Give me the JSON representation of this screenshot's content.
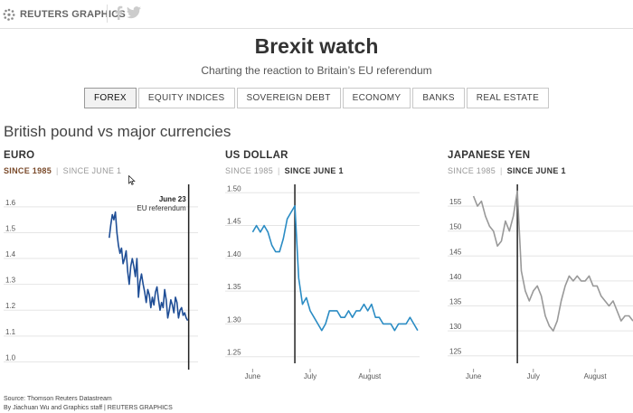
{
  "header": {
    "brand": "REUTERS GRAPHICS",
    "social": [
      {
        "name": "facebook-icon"
      },
      {
        "name": "twitter-icon"
      }
    ]
  },
  "page": {
    "title": "Brexit watch",
    "subtitle": "Charting the reaction to Britain’s EU referendum"
  },
  "tabs": [
    {
      "label": "FOREX",
      "active": true
    },
    {
      "label": "EQUITY INDICES",
      "active": false
    },
    {
      "label": "SOVEREIGN DEBT",
      "active": false
    },
    {
      "label": "ECONOMY",
      "active": false
    },
    {
      "label": "BANKS",
      "active": false
    },
    {
      "label": "REAL ESTATE",
      "active": false
    }
  ],
  "section": {
    "title": "British pound vs major currencies"
  },
  "footer": {
    "source": "Source: Thomson Reuters Datastream",
    "credit": "By Jiachuan Wu and Graphics staff | REUTERS GRAPHICS"
  },
  "colors": {
    "euro_line": "#1f4e96",
    "usd_line": "#2b8cc4",
    "yen_line": "#999999",
    "active_toggle_euro": "#7a4a2a",
    "active_toggle_other": "#333333",
    "grid": "#e5e5e5",
    "axis_text": "#555555"
  },
  "chart_data": [
    {
      "type": "line",
      "title": "EURO",
      "toggle": {
        "options": [
          "SINCE 1985",
          "SINCE JUNE 1"
        ],
        "selected": 0
      },
      "ylim": [
        0.97,
        1.68
      ],
      "yticks": [
        1.0,
        1.1,
        1.2,
        1.3,
        1.4,
        1.5,
        1.6
      ],
      "ytick_labels": [
        "1.0",
        "1.1",
        "1.2",
        "1.3",
        "1.4",
        "1.5",
        "1.6"
      ],
      "xlim": [
        1985,
        2017.6
      ],
      "xticks": [],
      "grid": true,
      "annotation": {
        "x": 2016.48,
        "label": "June 23",
        "sublabel": "EU referendum"
      },
      "series": [
        {
          "x": [
            2001.0,
            2001.3,
            2001.6,
            2001.9,
            2002.2,
            2002.5,
            2002.8,
            2003.1,
            2003.4,
            2003.7,
            2004.0,
            2004.3,
            2004.6,
            2004.9,
            2005.2,
            2005.5,
            2005.8,
            2006.1,
            2006.4,
            2006.7,
            2007.0,
            2007.3,
            2007.6,
            2007.9,
            2008.2,
            2008.5,
            2008.8,
            2009.1,
            2009.4,
            2009.7,
            2010.0,
            2010.3,
            2010.6,
            2010.9,
            2011.2,
            2011.5,
            2011.8,
            2012.1,
            2012.4,
            2012.7,
            2013.0,
            2013.3,
            2013.6,
            2013.9,
            2014.2,
            2014.5,
            2014.8,
            2015.1,
            2015.4,
            2015.7,
            2016.0,
            2016.3
          ],
          "y": [
            1.48,
            1.53,
            1.57,
            1.55,
            1.58,
            1.5,
            1.45,
            1.42,
            1.44,
            1.38,
            1.4,
            1.43,
            1.35,
            1.3,
            1.37,
            1.4,
            1.37,
            1.33,
            1.4,
            1.25,
            1.31,
            1.34,
            1.3,
            1.27,
            1.23,
            1.28,
            1.26,
            1.21,
            1.25,
            1.22,
            1.27,
            1.29,
            1.24,
            1.2,
            1.23,
            1.21,
            1.28,
            1.24,
            1.17,
            1.2,
            1.24,
            1.22,
            1.19,
            1.25,
            1.23,
            1.17,
            1.2,
            1.21,
            1.18,
            1.19,
            1.17,
            1.16
          ]
        }
      ]
    },
    {
      "type": "line",
      "title": "US DOLLAR",
      "toggle": {
        "options": [
          "SINCE 1985",
          "SINCE JUNE 1"
        ],
        "selected": 1
      },
      "ylim": [
        1.24,
        1.51
      ],
      "yticks": [
        1.25,
        1.3,
        1.35,
        1.4,
        1.45,
        1.5
      ],
      "ytick_labels": [
        "1.25",
        "1.30",
        "1.35",
        "1.40",
        "1.45",
        "1.50"
      ],
      "xlim": [
        "2016-05-29",
        "2016-08-27"
      ],
      "xticks": [
        "2016-06-01",
        "2016-07-01",
        "2016-08-01"
      ],
      "xtick_labels": [
        "June",
        "July",
        "August"
      ],
      "grid": true,
      "annotation": {
        "x": "2016-06-23"
      },
      "series": [
        {
          "x": [
            "2016-06-01",
            "2016-06-03",
            "2016-06-05",
            "2016-06-07",
            "2016-06-09",
            "2016-06-11",
            "2016-06-13",
            "2016-06-15",
            "2016-06-17",
            "2016-06-19",
            "2016-06-21",
            "2016-06-23",
            "2016-06-25",
            "2016-06-27",
            "2016-06-29",
            "2016-07-01",
            "2016-07-03",
            "2016-07-05",
            "2016-07-07",
            "2016-07-09",
            "2016-07-11",
            "2016-07-13",
            "2016-07-15",
            "2016-07-17",
            "2016-07-19",
            "2016-07-21",
            "2016-07-23",
            "2016-07-25",
            "2016-07-27",
            "2016-07-29",
            "2016-07-31",
            "2016-08-02",
            "2016-08-04",
            "2016-08-06",
            "2016-08-08",
            "2016-08-10",
            "2016-08-12",
            "2016-08-14",
            "2016-08-16",
            "2016-08-18",
            "2016-08-20",
            "2016-08-22",
            "2016-08-24",
            "2016-08-26"
          ],
          "y": [
            1.44,
            1.45,
            1.44,
            1.45,
            1.44,
            1.42,
            1.41,
            1.41,
            1.43,
            1.46,
            1.47,
            1.48,
            1.37,
            1.33,
            1.34,
            1.32,
            1.31,
            1.3,
            1.29,
            1.3,
            1.32,
            1.32,
            1.32,
            1.31,
            1.31,
            1.32,
            1.31,
            1.32,
            1.32,
            1.33,
            1.32,
            1.33,
            1.31,
            1.31,
            1.3,
            1.3,
            1.3,
            1.29,
            1.3,
            1.3,
            1.3,
            1.31,
            1.3,
            1.29
          ]
        }
      ]
    },
    {
      "type": "line",
      "title": "JAPANESE YEN",
      "toggle": {
        "options": [
          "SINCE 1985",
          "SINCE JUNE 1"
        ],
        "selected": 1
      },
      "ylim": [
        123.5,
        159
      ],
      "yticks": [
        125,
        130,
        135,
        140,
        145,
        150,
        155
      ],
      "ytick_labels": [
        "125",
        "130",
        "135",
        "140",
        "145",
        "150",
        "155"
      ],
      "xlim": [
        "2016-05-29",
        "2016-08-20"
      ],
      "xticks": [
        "2016-06-01",
        "2016-07-01",
        "2016-08-01"
      ],
      "xtick_labels": [
        "June",
        "July",
        "August"
      ],
      "grid": true,
      "annotation": {
        "x": "2016-06-23"
      },
      "series": [
        {
          "x": [
            "2016-06-01",
            "2016-06-03",
            "2016-06-05",
            "2016-06-07",
            "2016-06-09",
            "2016-06-11",
            "2016-06-13",
            "2016-06-15",
            "2016-06-17",
            "2016-06-19",
            "2016-06-21",
            "2016-06-23",
            "2016-06-25",
            "2016-06-27",
            "2016-06-29",
            "2016-07-01",
            "2016-07-03",
            "2016-07-05",
            "2016-07-07",
            "2016-07-09",
            "2016-07-11",
            "2016-07-13",
            "2016-07-15",
            "2016-07-17",
            "2016-07-19",
            "2016-07-21",
            "2016-07-23",
            "2016-07-25",
            "2016-07-27",
            "2016-07-29",
            "2016-07-31",
            "2016-08-02",
            "2016-08-04",
            "2016-08-06",
            "2016-08-08",
            "2016-08-10",
            "2016-08-12",
            "2016-08-14",
            "2016-08-16",
            "2016-08-18",
            "2016-08-20"
          ],
          "y": [
            157,
            155,
            156,
            153,
            151,
            150,
            147,
            148,
            152,
            150,
            153,
            158,
            142,
            138,
            136,
            138,
            139,
            137,
            133,
            131,
            130,
            132,
            136,
            139,
            141,
            140,
            141,
            140,
            140,
            141,
            139,
            139,
            137,
            136,
            135,
            136,
            134,
            132,
            133,
            133,
            132
          ]
        }
      ]
    }
  ]
}
